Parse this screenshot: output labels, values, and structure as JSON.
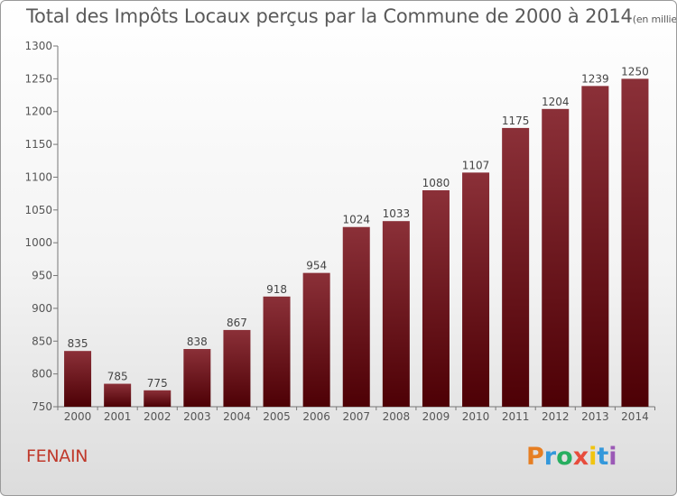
{
  "chart_data": {
    "type": "bar",
    "title": "Total des Impôts Locaux perçus par la Commune de 2000 à 2014",
    "subtitle": "(en milliers d'€)",
    "categories": [
      "2000",
      "2001",
      "2002",
      "2003",
      "2004",
      "2005",
      "2006",
      "2007",
      "2008",
      "2009",
      "2010",
      "2011",
      "2012",
      "2013",
      "2014"
    ],
    "values": [
      835,
      785,
      775,
      838,
      867,
      918,
      954,
      1024,
      1033,
      1080,
      1107,
      1175,
      1204,
      1239,
      1250
    ],
    "ylim": [
      750,
      1300
    ],
    "yticks": [
      750,
      800,
      850,
      900,
      950,
      1000,
      1050,
      1100,
      1150,
      1200,
      1250,
      1300
    ],
    "xlabel": "",
    "ylabel": "",
    "grid": false,
    "bar_color_top": "#8b3038",
    "bar_color_bottom": "#4d0005"
  },
  "footer": {
    "commune": "FENAIN",
    "brand": "Proxiti",
    "brand_colors": [
      "#e67e22",
      "#3498db",
      "#27ae60",
      "#e74c3c",
      "#f1c40f",
      "#3498db",
      "#9b59b6"
    ]
  }
}
